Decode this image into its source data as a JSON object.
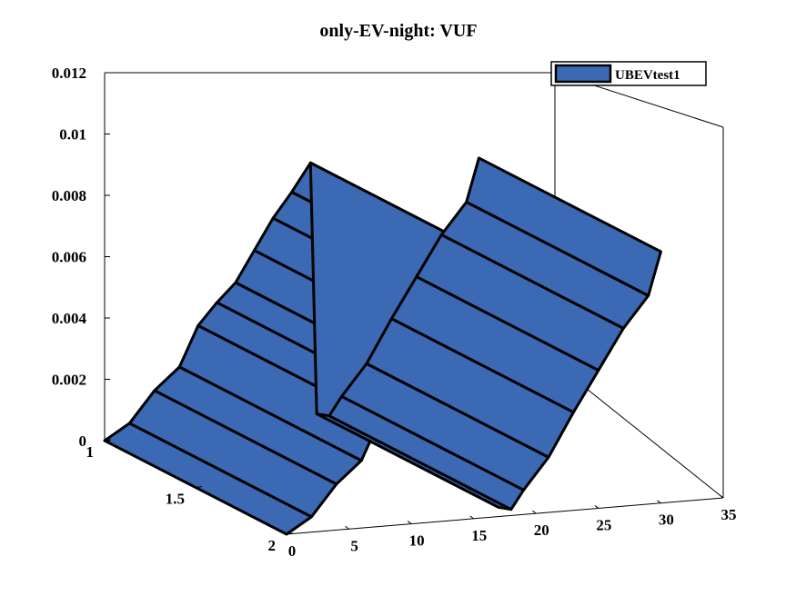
{
  "chart_data": {
    "type": "3d-ribbon",
    "title": "only-EV-night: VUF",
    "series": [
      {
        "name": "UBEVtest1",
        "color": "#3c69b3"
      }
    ],
    "z_ticks": [
      "0",
      "0.002",
      "0.004",
      "0.006",
      "0.008",
      "0.01",
      "0.012"
    ],
    "x_ticks": [
      "0",
      "5",
      "10",
      "15",
      "20",
      "25",
      "30",
      "35"
    ],
    "y_ticks": [
      "1",
      "1.5",
      "2"
    ],
    "zlim": [
      0,
      0.012
    ],
    "xlim": [
      0,
      35
    ],
    "ylim": [
      1,
      2
    ],
    "legend_position": "top-right",
    "front_profile": [
      {
        "x": 0,
        "z": 0.0
      },
      {
        "x": 2,
        "z": 0.0005
      },
      {
        "x": 4,
        "z": 0.0015
      },
      {
        "x": 6,
        "z": 0.0022
      },
      {
        "x": 7.5,
        "z": 0.0035
      },
      {
        "x": 9,
        "z": 0.0042
      },
      {
        "x": 10.5,
        "z": 0.0048
      },
      {
        "x": 12,
        "z": 0.0058
      },
      {
        "x": 13.5,
        "z": 0.0068
      },
      {
        "x": 15,
        "z": 0.0076
      },
      {
        "x": 16.5,
        "z": 0.0085
      },
      {
        "x": 17,
        "z": 0.0003
      },
      {
        "x": 18,
        "z": 0.0002
      },
      {
        "x": 19,
        "z": 0.0008
      },
      {
        "x": 21,
        "z": 0.0018
      },
      {
        "x": 23,
        "z": 0.0032
      },
      {
        "x": 25,
        "z": 0.0045
      },
      {
        "x": 27,
        "z": 0.0058
      },
      {
        "x": 29,
        "z": 0.0068
      },
      {
        "x": 30,
        "z": 0.0082
      }
    ]
  }
}
